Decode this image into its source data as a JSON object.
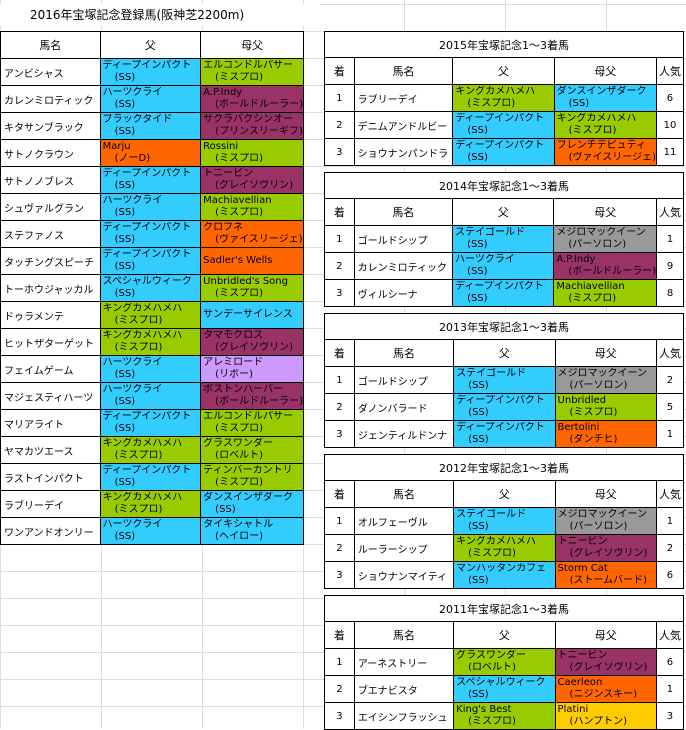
{
  "title": "2016年宝塚記念登録馬(阪神芝2200m)",
  "colors": {
    "cyan": "#33ccff",
    "green": "#99cc00",
    "purple": "#993366",
    "orange": "#ff6600",
    "lavender": "#cc99ff",
    "gray": "#999999",
    "gold": "#ffcc00"
  },
  "main": {
    "headers": [
      "馬名",
      "父",
      "母父"
    ],
    "rows": [
      {
        "name": "アンビシャス",
        "sire": [
          "ディープインパクト",
          "(SS)"
        ],
        "sire_color": "cyan",
        "dam": [
          "エルコンドルパサー",
          "(ミスプロ)"
        ],
        "dam_color": "green"
      },
      {
        "name": "カレンミロティック",
        "sire": [
          "ハーツクライ",
          "(SS)"
        ],
        "sire_color": "cyan",
        "dam": [
          "A.P.Indy",
          "(ボールドルーラー)"
        ],
        "dam_color": "purple"
      },
      {
        "name": "キタサンブラック",
        "sire": [
          "ブラックタイド",
          "(SS)"
        ],
        "sire_color": "cyan",
        "dam": [
          "サクラバクシンオー",
          "(プリンスリーギフ)"
        ],
        "dam_color": "purple"
      },
      {
        "name": "サトノクラウン",
        "sire": [
          "Marju",
          "(ノーD)"
        ],
        "sire_color": "orange",
        "dam": [
          "Rossini",
          "(ミスプロ)"
        ],
        "dam_color": "green"
      },
      {
        "name": "サトノノブレス",
        "sire": [
          "ディープインパクト",
          "(SS)"
        ],
        "sire_color": "cyan",
        "dam": [
          "トニービン",
          "(グレイソヴリン)"
        ],
        "dam_color": "purple"
      },
      {
        "name": "シュヴァルグラン",
        "sire": [
          "ハーツクライ",
          "(SS)"
        ],
        "sire_color": "cyan",
        "dam": [
          "Machiavellian",
          "(ミスプロ)"
        ],
        "dam_color": "green"
      },
      {
        "name": "ステファノス",
        "sire": [
          "ディープインパクト",
          "(SS)"
        ],
        "sire_color": "cyan",
        "dam": [
          "クロフネ",
          "(ヴァイスリージェ)"
        ],
        "dam_color": "orange"
      },
      {
        "name": "タッチングスピーチ",
        "sire": [
          "ディープインパクト",
          "(SS)"
        ],
        "sire_color": "cyan",
        "dam": [
          "Sadler's Wells",
          ""
        ],
        "dam_color": "orange"
      },
      {
        "name": "トーホウジャッカル",
        "sire": [
          "スペシャルウィーク",
          "(SS)"
        ],
        "sire_color": "cyan",
        "dam": [
          "Unbridled's Song",
          "(ミスプロ)"
        ],
        "dam_color": "green"
      },
      {
        "name": "ドゥラメンテ",
        "sire": [
          "キングカメハメハ",
          "(ミスプロ)"
        ],
        "sire_color": "green",
        "dam": [
          "サンデーサイレンス",
          ""
        ],
        "dam_color": "cyan"
      },
      {
        "name": "ヒットザターゲット",
        "sire": [
          "キングカメハメハ",
          "(ミスプロ)"
        ],
        "sire_color": "green",
        "dam": [
          "タマモクロス",
          "(グレイソヴリン)"
        ],
        "dam_color": "purple"
      },
      {
        "name": "フェイムゲーム",
        "sire": [
          "ハーツクライ",
          "(SS)"
        ],
        "sire_color": "cyan",
        "dam": [
          "アレミロード",
          "(リボー)"
        ],
        "dam_color": "lavender"
      },
      {
        "name": "マジェスティハーツ",
        "sire": [
          "ハーツクライ",
          "(SS)"
        ],
        "sire_color": "cyan",
        "dam": [
          "ボストンハーバー",
          "(ボールドルーラー)"
        ],
        "dam_color": "purple"
      },
      {
        "name": "マリアライト",
        "sire": [
          "ディープインパクト",
          "(SS)"
        ],
        "sire_color": "cyan",
        "dam": [
          "エルコンドルパサー",
          "(ミスプロ)"
        ],
        "dam_color": "green"
      },
      {
        "name": "ヤマカツエース",
        "sire": [
          "キングカメハメハ",
          "(ミスプロ)"
        ],
        "sire_color": "green",
        "dam": [
          "グラスワンダー",
          "(ロベルト)"
        ],
        "dam_color": "green"
      },
      {
        "name": "ラストインパクト",
        "sire": [
          "ディープインパクト",
          "(SS)"
        ],
        "sire_color": "cyan",
        "dam": [
          "ティンバーカントリ",
          "(ミスプロ)"
        ],
        "dam_color": "green"
      },
      {
        "name": "ラブリーデイ",
        "sire": [
          "キングカメハメハ",
          "(ミスプロ)"
        ],
        "sire_color": "green",
        "dam": [
          "ダンスインザダーク",
          "(SS)"
        ],
        "dam_color": "cyan"
      },
      {
        "name": "ワンアンドオンリー",
        "sire": [
          "ハーツクライ",
          "(SS)"
        ],
        "sire_color": "cyan",
        "dam": [
          "タイキシャトル",
          "(ヘイロー)"
        ],
        "dam_color": "cyan"
      }
    ]
  },
  "results": [
    {
      "caption": "2015年宝塚記念1～3着馬",
      "headers": [
        "着",
        "馬名",
        "父",
        "母父",
        "人気"
      ],
      "rows": [
        {
          "rank": "1",
          "name": "ラブリーデイ",
          "sire": [
            "キングカメハメハ",
            "(ミスプロ)"
          ],
          "sire_color": "green",
          "dam": [
            "ダンスインザダーク",
            "(SS)"
          ],
          "dam_color": "cyan",
          "pop": "6"
        },
        {
          "rank": "2",
          "name": "デニムアンドルビー",
          "sire": [
            "ディープインパクト",
            "(SS)"
          ],
          "sire_color": "cyan",
          "dam": [
            "キングカメハメハ",
            "(ミスプロ)"
          ],
          "dam_color": "green",
          "pop": "10"
        },
        {
          "rank": "3",
          "name": "ショウナンパンドラ",
          "sire": [
            "ディープインパクト",
            "(SS)"
          ],
          "sire_color": "cyan",
          "dam": [
            "フレンチデピュティ",
            "(ヴァイスリージェ)"
          ],
          "dam_color": "orange",
          "pop": "11"
        }
      ]
    },
    {
      "caption": "2014年宝塚記念1～3着馬",
      "headers": [
        "着",
        "馬名",
        "父",
        "母父",
        "人気"
      ],
      "rows": [
        {
          "rank": "1",
          "name": "ゴールドシップ",
          "sire": [
            "ステイゴールド",
            "(SS)"
          ],
          "sire_color": "cyan",
          "dam": [
            "メジロマックイーン",
            "(パーソロン)"
          ],
          "dam_color": "gray",
          "pop": "1"
        },
        {
          "rank": "2",
          "name": "カレンミロティック",
          "sire": [
            "ハーツクライ",
            "(SS)"
          ],
          "sire_color": "cyan",
          "dam": [
            "A.P.Indy",
            "(ボールドルーラー)"
          ],
          "dam_color": "purple",
          "pop": "9"
        },
        {
          "rank": "3",
          "name": "ヴィルシーナ",
          "sire": [
            "ディープインパクト",
            "(SS)"
          ],
          "sire_color": "cyan",
          "dam": [
            "Machiavellian",
            "(ミスプロ)"
          ],
          "dam_color": "green",
          "pop": "8"
        }
      ]
    },
    {
      "caption": "2013年宝塚記念1～3着馬",
      "headers": [
        "着",
        "馬名",
        "父",
        "母父",
        "人気"
      ],
      "rows": [
        {
          "rank": "1",
          "name": "ゴールドシップ",
          "sire": [
            "ステイゴールド",
            "(SS)"
          ],
          "sire_color": "cyan",
          "dam": [
            "メジロマックイーン",
            "(パーソロン)"
          ],
          "dam_color": "gray",
          "pop": "2"
        },
        {
          "rank": "2",
          "name": "ダノンバラード",
          "sire": [
            "ディープインパクト",
            "(SS)"
          ],
          "sire_color": "cyan",
          "dam": [
            "Unbridled",
            "(ミスプロ)"
          ],
          "dam_color": "green",
          "pop": "5"
        },
        {
          "rank": "3",
          "name": "ジェンティルドンナ",
          "sire": [
            "ディープインパクト",
            "(SS)"
          ],
          "sire_color": "cyan",
          "dam": [
            "Bertolini",
            "(ダンチヒ)"
          ],
          "dam_color": "orange",
          "pop": "1"
        }
      ]
    },
    {
      "caption": "2012年宝塚記念1～3着馬",
      "headers": [
        "着",
        "馬名",
        "父",
        "母父",
        "人気"
      ],
      "rows": [
        {
          "rank": "1",
          "name": "オルフェーヴル",
          "sire": [
            "ステイゴールド",
            "(SS)"
          ],
          "sire_color": "cyan",
          "dam": [
            "メジロマックイーン",
            "(パーソロン)"
          ],
          "dam_color": "gray",
          "pop": "1"
        },
        {
          "rank": "2",
          "name": "ルーラーシップ",
          "sire": [
            "キングカメハメハ",
            "(ミスプロ)"
          ],
          "sire_color": "green",
          "dam": [
            "トニービン",
            "(グレイソヴリン)"
          ],
          "dam_color": "purple",
          "pop": "2"
        },
        {
          "rank": "3",
          "name": "ショウナンマイティ",
          "sire": [
            "マンハッタンカフェ",
            "(SS)"
          ],
          "sire_color": "cyan",
          "dam": [
            "Storm Cat",
            "(ストームバード)"
          ],
          "dam_color": "orange",
          "pop": "6"
        }
      ]
    },
    {
      "caption": "2011年宝塚記念1～3着馬",
      "headers": [
        "着",
        "馬名",
        "父",
        "母父",
        "人気"
      ],
      "rows": [
        {
          "rank": "1",
          "name": "アーネストリー",
          "sire": [
            "グラスワンダー",
            "(ロベルト)"
          ],
          "sire_color": "green",
          "dam": [
            "トニービン",
            "(グレイソヴリン)"
          ],
          "dam_color": "purple",
          "pop": "6"
        },
        {
          "rank": "2",
          "name": "ブエナビスタ",
          "sire": [
            "スペシャルウィーク",
            "(SS)"
          ],
          "sire_color": "cyan",
          "dam": [
            "Caerleon",
            "(ニジンスキー)"
          ],
          "dam_color": "orange",
          "pop": "1"
        },
        {
          "rank": "3",
          "name": "エイシンフラッシュ",
          "sire": [
            "King's Best",
            "(ミスプロ)"
          ],
          "sire_color": "green",
          "dam": [
            "Platini",
            "(ハンプトン)"
          ],
          "dam_color": "gold",
          "pop": "3"
        }
      ]
    }
  ]
}
